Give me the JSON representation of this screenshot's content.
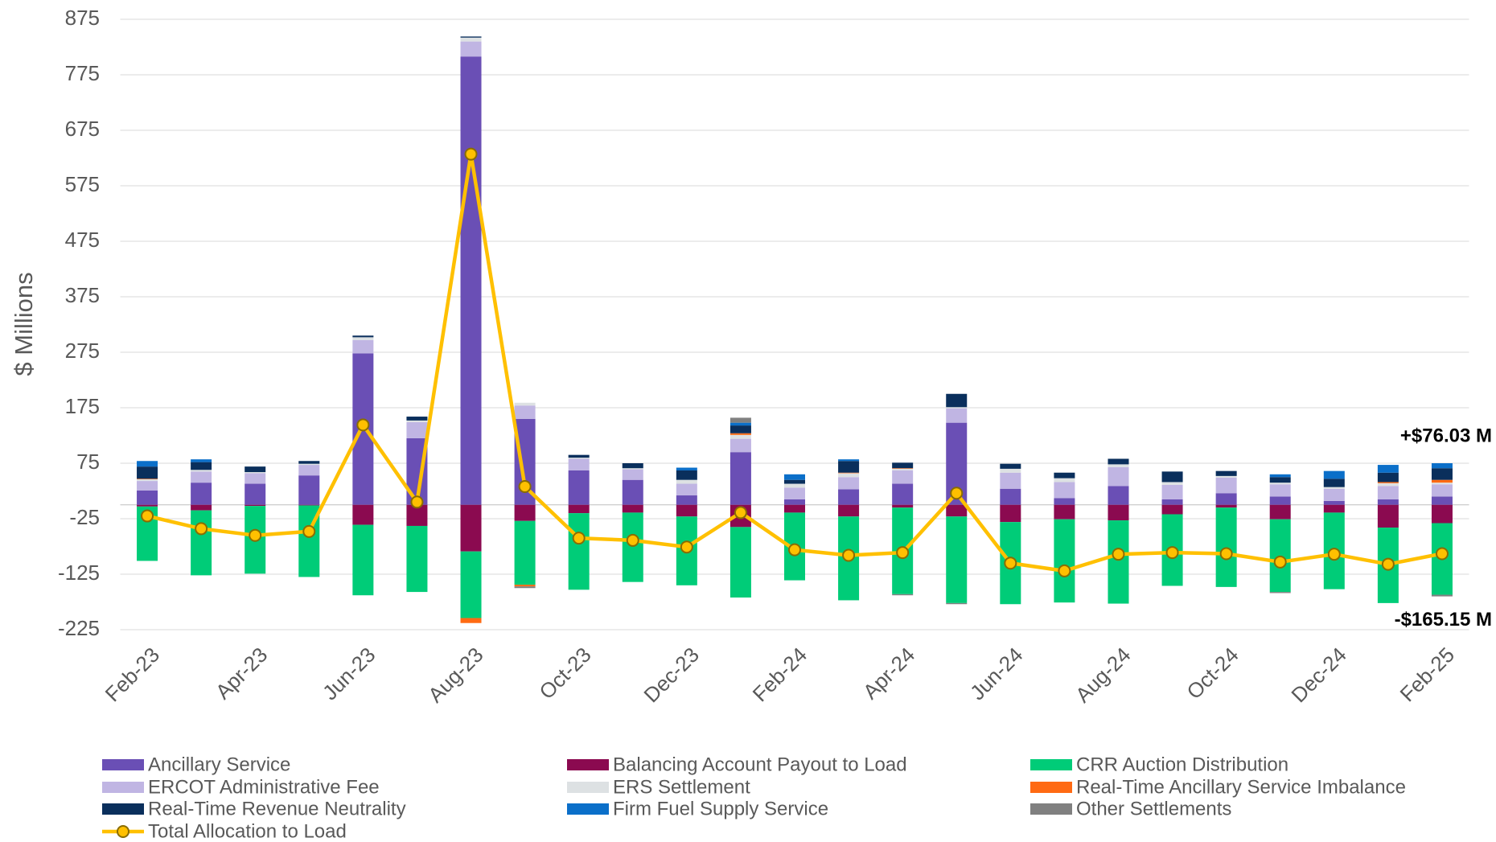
{
  "chart_data": {
    "type": "bar",
    "stacked": true,
    "y_axis_label": "$ Millions",
    "categories": [
      "Feb-23",
      null,
      "Apr-23",
      null,
      "Jun-23",
      null,
      "Aug-23",
      null,
      "Oct-23",
      null,
      "Dec-23",
      null,
      "Feb-24",
      null,
      "Apr-24",
      null,
      "Jun-24",
      null,
      "Aug-24",
      null,
      "Oct-24",
      null,
      "Dec-24",
      null,
      "Feb-25"
    ],
    "ylim": [
      -225,
      875
    ],
    "yticks": [
      -225,
      -125,
      -25,
      75,
      175,
      275,
      375,
      475,
      575,
      675,
      775,
      875
    ],
    "grid": true,
    "legend": "bottom",
    "series": [
      {
        "name": "Ancillary Service",
        "color": "#6a4fb5",
        "values": [
          26,
          40,
          38,
          53,
          273,
          120,
          808,
          155,
          62,
          45,
          17,
          95,
          10,
          28,
          38,
          148,
          29,
          12,
          34,
          10,
          21,
          15,
          7,
          10,
          15
        ]
      },
      {
        "name": "Balancing Account Payout to Load",
        "color": "#8b0a50",
        "values": [
          -3,
          -10,
          -2,
          -1,
          -36,
          -38,
          -84,
          -29,
          -15,
          -14,
          -21,
          -40,
          -14,
          -21,
          -5,
          -21,
          -31,
          -26,
          -28,
          -17,
          -5,
          -26,
          -14,
          -41,
          -33
        ]
      },
      {
        "name": "CRR Auction Distribution",
        "color": "#00cc78",
        "values": [
          -98,
          -117,
          -122,
          -129,
          -127,
          -119,
          -120,
          -115,
          -138,
          -125,
          -124,
          -127,
          -122,
          -151,
          -156,
          -156,
          -148,
          -150,
          -150,
          -129,
          -143,
          -131,
          -138,
          -136,
          -129
        ]
      },
      {
        "name": "ERCOT Administrative Fee",
        "color": "#c0b5e3",
        "values": [
          17,
          20,
          19,
          19,
          24,
          29,
          27,
          24,
          21,
          19,
          21,
          24,
          21,
          22,
          24,
          26,
          29,
          29,
          34,
          26,
          28,
          22,
          22,
          24,
          22
        ]
      },
      {
        "name": "ERS Settlement",
        "color": "#dde1e3",
        "values": [
          3,
          3,
          2,
          2,
          5,
          3,
          7,
          5,
          2,
          2,
          7,
          7,
          7,
          7,
          3,
          2,
          7,
          7,
          5,
          5,
          3,
          3,
          3,
          5,
          3
        ]
      },
      {
        "name": "Real-Time Ancillary Service Imbalance",
        "color": "#ff6a13",
        "values": [
          1,
          0,
          0,
          0,
          0,
          0,
          -9,
          -3,
          0,
          0,
          0,
          3,
          0,
          1,
          1,
          0,
          0,
          0,
          0,
          0,
          0,
          0,
          0,
          2,
          5
        ]
      },
      {
        "name": "Real-Time Revenue Neutrality",
        "color": "#0a2f5c",
        "values": [
          22,
          14,
          10,
          5,
          3,
          7,
          2,
          0,
          5,
          9,
          17,
          14,
          7,
          21,
          10,
          24,
          9,
          10,
          10,
          19,
          9,
          10,
          15,
          17,
          21
        ]
      },
      {
        "name": "Firm Fuel Supply Service",
        "color": "#0b6fc9",
        "values": [
          10,
          5,
          0,
          0,
          0,
          0,
          0,
          0,
          0,
          0,
          5,
          5,
          10,
          3,
          0,
          0,
          0,
          0,
          0,
          0,
          0,
          5,
          14,
          14,
          9
        ]
      },
      {
        "name": "Other Settlements",
        "color": "#808080",
        "values": [
          0,
          0,
          0,
          0,
          0,
          0,
          0,
          -3,
          0,
          0,
          0,
          9,
          0,
          0,
          -2,
          -2,
          0,
          0,
          0,
          0,
          0,
          -2,
          0,
          0,
          -3
        ]
      },
      {
        "name": "Total Allocation to Load",
        "color": "#ffc000",
        "type": "line",
        "values": [
          -20,
          -43,
          -55,
          -48,
          144,
          5,
          632,
          33,
          -60,
          -64,
          -76,
          -14,
          -81,
          -91,
          -86,
          21,
          -105,
          -119,
          -89,
          -86,
          -88,
          -103,
          -89,
          -107,
          -88
        ]
      }
    ],
    "annotations": [
      {
        "text": "+$76.03 M"
      },
      {
        "text": "-$165.15 M"
      }
    ]
  }
}
